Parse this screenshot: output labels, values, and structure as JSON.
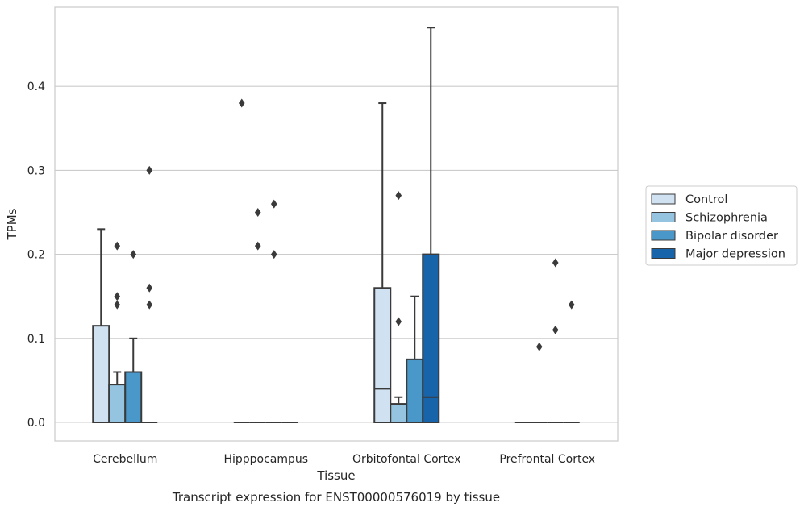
{
  "chart_data": {
    "type": "box",
    "caption": "Transcript expression for ENST00000576019 by tissue",
    "xlabel": "Tissue",
    "ylabel": "TPMs",
    "ylim": [
      -0.023,
      0.49
    ],
    "yticks": [
      0.0,
      0.1,
      0.2,
      0.3,
      0.4
    ],
    "ytick_labels": [
      "0.0",
      "0.1",
      "0.2",
      "0.3",
      "0.4"
    ],
    "grid": "horizontal",
    "legend_position": "center-right",
    "categories": [
      "Cerebellum",
      "Hipppocampus",
      "Orbitofontal Cortex",
      "Prefrontal Cortex"
    ],
    "series": [
      {
        "name": "Control",
        "color": "#d0e1f2",
        "boxes": [
          {
            "q1": 0.0,
            "median": 0.0,
            "q3": 0.115,
            "whislo": 0.0,
            "whishi": 0.23,
            "fliers": []
          },
          {
            "q1": 0.0,
            "median": 0.0,
            "q3": 0.0,
            "whislo": 0.0,
            "whishi": 0.0,
            "fliers": [
              0.38
            ]
          },
          {
            "q1": 0.0,
            "median": 0.04,
            "q3": 0.16,
            "whislo": 0.0,
            "whishi": 0.38,
            "fliers": []
          },
          {
            "q1": 0.0,
            "median": 0.0,
            "q3": 0.0,
            "whislo": 0.0,
            "whishi": 0.0,
            "fliers": []
          }
        ]
      },
      {
        "name": "Schizophrenia",
        "color": "#94c4df",
        "boxes": [
          {
            "q1": 0.0,
            "median": 0.0,
            "q3": 0.045,
            "whislo": 0.0,
            "whishi": 0.06,
            "fliers": [
              0.21,
              0.15,
              0.14
            ]
          },
          {
            "q1": 0.0,
            "median": 0.0,
            "q3": 0.0,
            "whislo": 0.0,
            "whishi": 0.0,
            "fliers": [
              0.25,
              0.21
            ]
          },
          {
            "q1": 0.0,
            "median": 0.0,
            "q3": 0.022,
            "whislo": 0.0,
            "whishi": 0.03,
            "fliers": [
              0.27,
              0.12
            ]
          },
          {
            "q1": 0.0,
            "median": 0.0,
            "q3": 0.0,
            "whislo": 0.0,
            "whishi": 0.0,
            "fliers": [
              0.09
            ]
          }
        ]
      },
      {
        "name": "Bipolar disorder",
        "color": "#4a98c9",
        "boxes": [
          {
            "q1": 0.0,
            "median": 0.0,
            "q3": 0.06,
            "whislo": 0.0,
            "whishi": 0.1,
            "fliers": [
              0.2
            ]
          },
          {
            "q1": 0.0,
            "median": 0.0,
            "q3": 0.0,
            "whislo": 0.0,
            "whishi": 0.0,
            "fliers": [
              0.26,
              0.2
            ]
          },
          {
            "q1": 0.0,
            "median": 0.0,
            "q3": 0.075,
            "whislo": 0.0,
            "whishi": 0.15,
            "fliers": []
          },
          {
            "q1": 0.0,
            "median": 0.0,
            "q3": 0.0,
            "whislo": 0.0,
            "whishi": 0.0,
            "fliers": [
              0.19,
              0.11
            ]
          }
        ]
      },
      {
        "name": "Major depression",
        "color": "#1764ab",
        "boxes": [
          {
            "q1": 0.0,
            "median": 0.0,
            "q3": 0.0,
            "whislo": 0.0,
            "whishi": 0.0,
            "fliers": [
              0.3,
              0.16,
              0.14
            ]
          },
          {
            "q1": 0.0,
            "median": 0.0,
            "q3": 0.0,
            "whislo": 0.0,
            "whishi": 0.0,
            "fliers": []
          },
          {
            "q1": 0.0,
            "median": 0.03,
            "q3": 0.2,
            "whislo": 0.0,
            "whishi": 0.47,
            "fliers": []
          },
          {
            "q1": 0.0,
            "median": 0.0,
            "q3": 0.0,
            "whislo": 0.0,
            "whishi": 0.0,
            "fliers": [
              0.14
            ]
          }
        ]
      }
    ]
  }
}
